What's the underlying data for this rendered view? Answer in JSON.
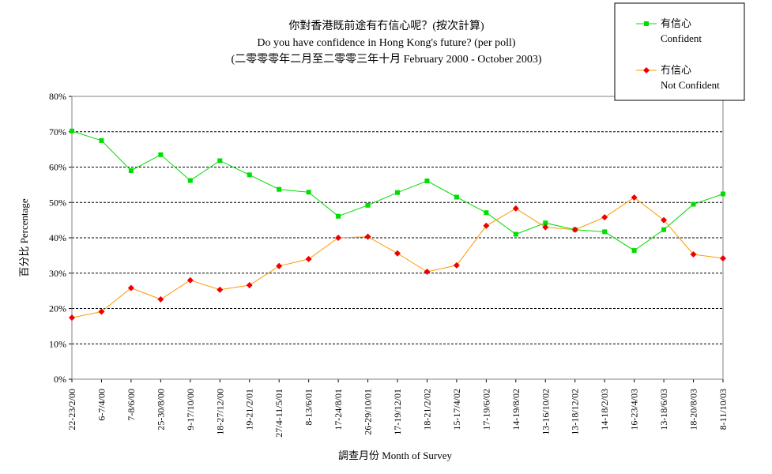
{
  "chart_data": {
    "type": "line",
    "title": "你對香港既前途有冇信心呢？(按次計算)",
    "subtitle": "Do you have confidence in Hong Kong's future? (per poll)",
    "subtitle2": "(二零零零年二月至二零零三年十月 February 2000 - October 2003)",
    "xlabel": "調查月份 Month of Survey",
    "ylabel": "百分比 Percentage",
    "ylim": [
      0,
      80
    ],
    "yticks": [
      "0%",
      "10%",
      "20%",
      "30%",
      "40%",
      "50%",
      "60%",
      "70%",
      "80%"
    ],
    "grid": true,
    "legend_position": "top-right",
    "categories": [
      "22-23/2/00",
      "6-7/4/00",
      "7-8/6/00",
      "25-30/8/00",
      "9-17/10/00",
      "18-27/12/00",
      "19-21/2/01",
      "27/4-11/5/01",
      "8-13/6/01",
      "17-24/8/01",
      "26-29/10/01",
      "17-19/12/01",
      "18-21/2/02",
      "15-17/4/02",
      "17-19/6/02",
      "14-19/8/02",
      "13-16/10/02",
      "13-18/12/02",
      "14-18/2/03",
      "16-23/4/03",
      "13-18/6/03",
      "18-20/8/03",
      "8-11/10/03"
    ],
    "series": [
      {
        "name": "有信心",
        "name_en": "Confident",
        "color": "#00dd00",
        "marker": "square",
        "values": [
          70.2,
          67.5,
          59,
          63.5,
          56.2,
          61.8,
          57.8,
          53.7,
          52.9,
          46.1,
          49.2,
          52.8,
          56.1,
          51.5,
          47.1,
          41,
          44.2,
          42.3,
          41.7,
          36.4,
          42.3,
          49.5,
          52.4
        ]
      },
      {
        "name": "冇信心",
        "name_en": "Not Confident",
        "color": "#ff9900",
        "marker_color": "#ee0000",
        "marker": "diamond",
        "values": [
          17.4,
          19.1,
          25.8,
          22.6,
          28,
          25.3,
          26.6,
          32,
          34,
          40,
          40.3,
          35.6,
          30.4,
          32.2,
          43.4,
          48.3,
          43,
          42.3,
          45.8,
          51.4,
          45,
          35.3,
          34.2
        ]
      }
    ]
  }
}
